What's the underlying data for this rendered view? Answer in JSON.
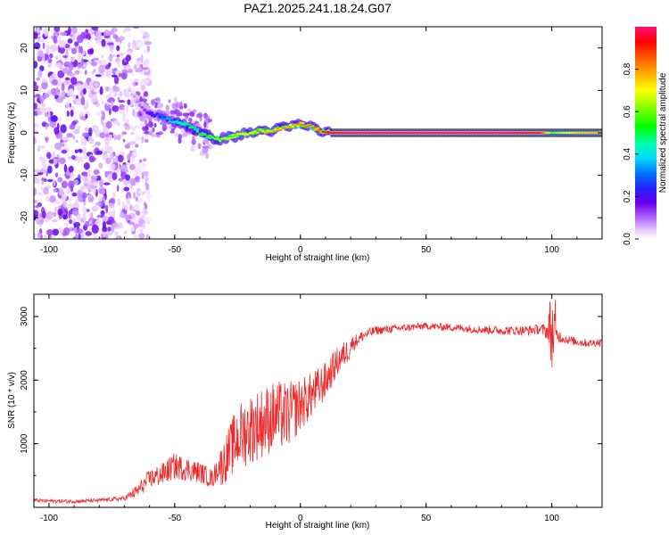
{
  "title": "PAZ1.2025.241.18.24.G07",
  "colorbar": {
    "label": "Normalized spectral amplitude",
    "ticks": [
      "0.0",
      "0.2",
      "0.4",
      "0.6",
      "0.8"
    ],
    "tick_values": [
      0.0,
      0.2,
      0.4,
      0.6,
      0.8
    ],
    "range": [
      0,
      1
    ]
  },
  "colors": {
    "snr_line": "#ee2b2b",
    "spectrogram_low": "#ad55ee",
    "spectrogram_band": "#dd1060"
  },
  "chart_data": [
    {
      "type": "heatmap",
      "panel": "spectrogram",
      "title": "PAZ1.2025.241.18.24.G07",
      "xlabel": "Height of straight line (km)",
      "ylabel": "Frequency (Hz)",
      "xlim": [
        -106,
        120
      ],
      "ylim": [
        -25,
        25
      ],
      "xticks": [
        -100,
        -50,
        0,
        50,
        100
      ],
      "xtick_labels": [
        "-100",
        "-50",
        "0",
        "50",
        "100"
      ],
      "yticks": [
        -20,
        -10,
        0,
        10,
        20
      ],
      "ytick_labels": [
        "-20",
        "-10",
        "0",
        "10",
        "20"
      ],
      "noise_region_x": [
        -106,
        -68
      ],
      "ridge": {
        "x": [
          -68,
          -64,
          -60,
          -56,
          -52,
          -48,
          -44,
          -40,
          -36,
          -32,
          -28,
          -24,
          -20,
          -16,
          -12,
          -8,
          -4,
          0,
          4,
          8,
          12,
          20,
          40,
          60,
          80,
          95,
          100,
          110,
          120
        ],
        "frequency": [
          10,
          6.5,
          4.5,
          4,
          3,
          2.5,
          1.5,
          0,
          -1,
          -1.5,
          -1,
          -0.5,
          0,
          0.5,
          0.5,
          1,
          1.5,
          2,
          1.5,
          0.5,
          0,
          0,
          0,
          0,
          0,
          0,
          0,
          0,
          0
        ],
        "amplitude": [
          0.05,
          0.1,
          0.2,
          0.3,
          0.4,
          0.45,
          0.5,
          0.55,
          0.6,
          0.65,
          0.7,
          0.7,
          0.72,
          0.75,
          0.78,
          0.8,
          0.8,
          0.82,
          0.85,
          0.9,
          0.95,
          1.0,
          1.0,
          1.0,
          1.0,
          0.95,
          0.6,
          0.75,
          0.8
        ]
      }
    },
    {
      "type": "line",
      "panel": "snr",
      "xlabel": "Height of straight line (km)",
      "ylabel": "SNR (10 * v/v)",
      "xlim": [
        -106,
        120
      ],
      "ylim": [
        0,
        3350
      ],
      "xticks": [
        -100,
        -50,
        0,
        50,
        100
      ],
      "xtick_labels": [
        "-100",
        "-50",
        "0",
        "50",
        "100"
      ],
      "yticks": [
        1000,
        2000,
        3000
      ],
      "ytick_labels": [
        "1000",
        "2000",
        "3000"
      ],
      "series": [
        {
          "name": "SNR",
          "x": [
            -106,
            -100,
            -90,
            -80,
            -70,
            -65,
            -60,
            -55,
            -50,
            -45,
            -40,
            -35,
            -30,
            -25,
            -20,
            -15,
            -10,
            -5,
            0,
            5,
            10,
            15,
            20,
            25,
            30,
            40,
            50,
            60,
            70,
            80,
            90,
            95,
            100,
            105,
            110,
            115,
            120
          ],
          "values": [
            110,
            100,
            95,
            110,
            140,
            250,
            450,
            520,
            650,
            600,
            550,
            450,
            820,
            1200,
            1350,
            1450,
            1550,
            1550,
            1700,
            1850,
            2050,
            2350,
            2550,
            2700,
            2780,
            2820,
            2850,
            2830,
            2800,
            2780,
            2780,
            2800,
            2750,
            2650,
            2600,
            2580,
            2600
          ],
          "spread": [
            60,
            60,
            60,
            60,
            70,
            220,
            300,
            360,
            420,
            380,
            330,
            300,
            520,
            750,
            800,
            800,
            800,
            750,
            600,
            520,
            420,
            330,
            260,
            180,
            140,
            120,
            110,
            120,
            130,
            140,
            150,
            160,
            320,
            150,
            130,
            130,
            130
          ]
        }
      ]
    }
  ]
}
